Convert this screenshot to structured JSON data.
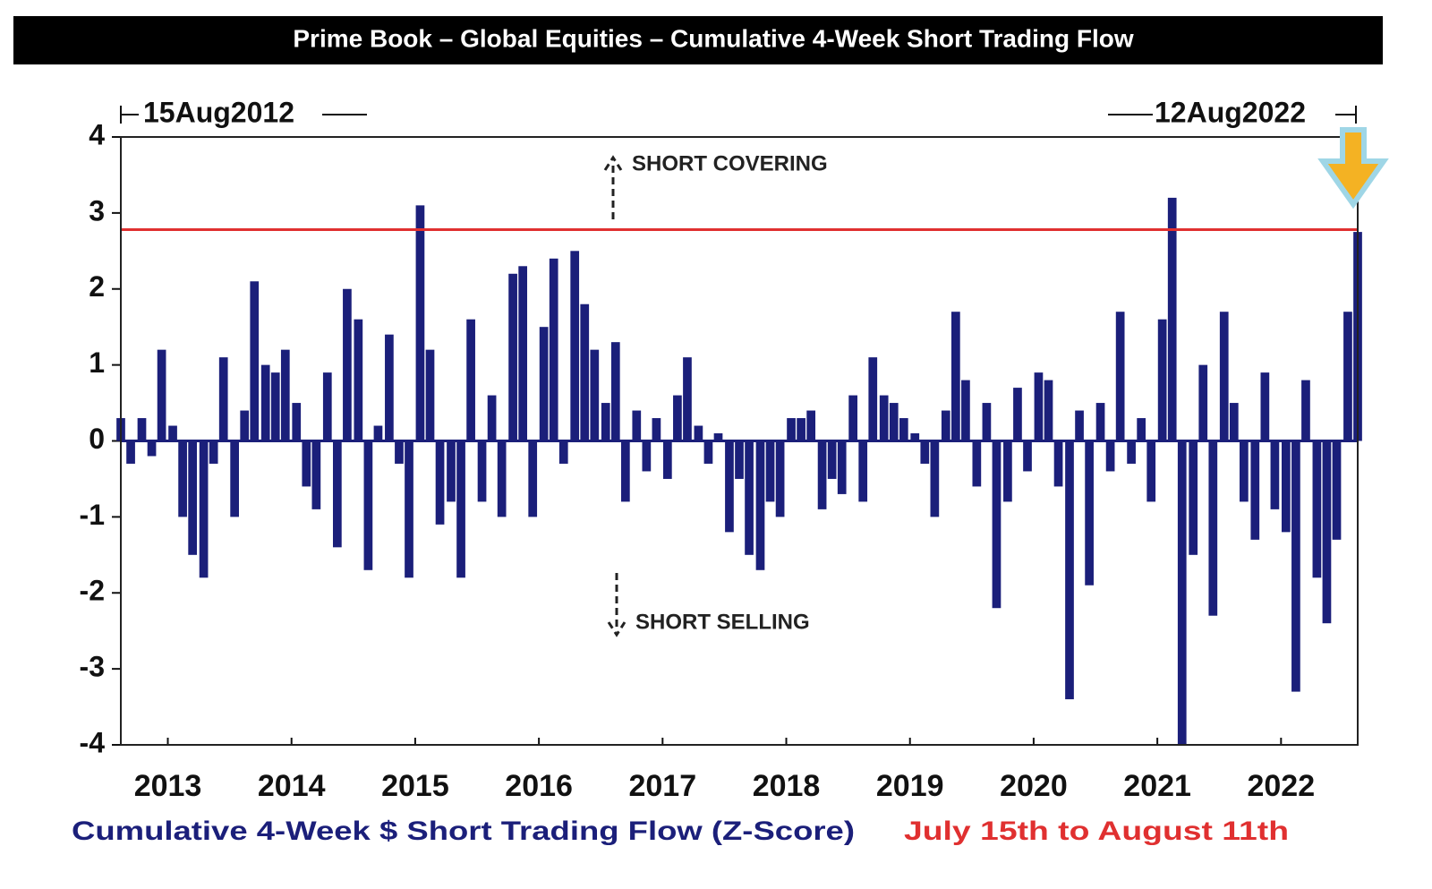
{
  "chart_data": {
    "type": "bar",
    "title": "Prime Book – Global Equities – Cumulative 4-Week Short Trading Flow",
    "annotations": {
      "start": "15Aug2012",
      "end": "12Aug2022",
      "up": "SHORT COVERING",
      "down": "SHORT SELLING"
    },
    "x": [
      2012.62,
      2012.7,
      2012.79,
      2012.87,
      2012.95,
      2013.04,
      2013.12,
      2013.2,
      2013.29,
      2013.37,
      2013.45,
      2013.54,
      2013.62,
      2013.7,
      2013.79,
      2013.87,
      2013.95,
      2014.04,
      2014.12,
      2014.2,
      2014.29,
      2014.37,
      2014.45,
      2014.54,
      2014.62,
      2014.7,
      2014.79,
      2014.87,
      2014.95,
      2015.04,
      2015.12,
      2015.2,
      2015.29,
      2015.37,
      2015.45,
      2015.54,
      2015.62,
      2015.7,
      2015.79,
      2015.87,
      2015.95,
      2016.04,
      2016.12,
      2016.2,
      2016.29,
      2016.37,
      2016.45,
      2016.54,
      2016.62,
      2016.7,
      2016.79,
      2016.87,
      2016.95,
      2017.04,
      2017.12,
      2017.2,
      2017.29,
      2017.37,
      2017.45,
      2017.54,
      2017.62,
      2017.7,
      2017.79,
      2017.87,
      2017.95,
      2018.04,
      2018.12,
      2018.2,
      2018.29,
      2018.37,
      2018.45,
      2018.54,
      2018.62,
      2018.7,
      2018.79,
      2018.87,
      2018.95,
      2019.04,
      2019.12,
      2019.2,
      2019.29,
      2019.37,
      2019.45,
      2019.54,
      2019.62,
      2019.7,
      2019.79,
      2019.87,
      2019.95,
      2020.04,
      2020.12,
      2020.2,
      2020.29,
      2020.37,
      2020.45,
      2020.54,
      2020.62,
      2020.7,
      2020.79,
      2020.87,
      2020.95,
      2021.04,
      2021.12,
      2021.2,
      2021.29,
      2021.37,
      2021.45,
      2021.54,
      2021.62,
      2021.7,
      2021.79,
      2021.87,
      2021.95,
      2022.04,
      2022.12,
      2022.2,
      2022.29,
      2022.37,
      2022.45,
      2022.54,
      2022.62
    ],
    "series": [
      {
        "name": "Cumulative 4-Week $ Short Trading Flow (Z-Score)",
        "color": "#1b1f7a",
        "values": [
          0.3,
          -0.3,
          0.3,
          -0.2,
          1.2,
          0.2,
          -1.0,
          -1.5,
          -1.8,
          -0.3,
          1.1,
          -1.0,
          0.4,
          2.1,
          1.0,
          0.9,
          1.2,
          0.5,
          -0.6,
          -0.9,
          0.9,
          -1.4,
          2.0,
          1.6,
          -1.7,
          0.2,
          1.4,
          -0.3,
          -1.8,
          3.1,
          1.2,
          -1.1,
          -0.8,
          -1.8,
          1.6,
          -0.8,
          0.6,
          -1.0,
          2.2,
          2.3,
          -1.0,
          1.5,
          2.4,
          -0.3,
          2.5,
          1.8,
          1.2,
          0.5,
          1.3,
          -0.8,
          0.4,
          -0.4,
          0.3,
          -0.5,
          0.6,
          1.1,
          0.2,
          -0.3,
          0.1,
          -1.2,
          -0.5,
          -1.5,
          -1.7,
          -0.8,
          -1.0,
          0.3,
          0.3,
          0.4,
          -0.9,
          -0.5,
          -0.7,
          0.6,
          -0.8,
          1.1,
          0.6,
          0.5,
          0.3,
          0.1,
          -0.3,
          -1.0,
          0.4,
          1.7,
          0.8,
          -0.6,
          0.5,
          -2.2,
          -0.8,
          0.7,
          -0.4,
          0.9,
          0.8,
          -0.6,
          -3.4,
          0.4,
          -1.9,
          0.5,
          -0.4,
          1.7,
          -0.3,
          0.3,
          -0.8,
          1.6,
          3.2,
          -4.0,
          -1.5,
          1.0,
          -2.3,
          1.7,
          0.5,
          -0.8,
          -1.3,
          0.9,
          -0.9,
          -1.2,
          -3.3,
          0.8,
          -1.8,
          -2.4,
          -1.3,
          1.7,
          2.75
        ]
      }
    ],
    "reference_line": {
      "value": 2.78,
      "label": "July 15th to August 11th",
      "color": "#e03030"
    },
    "xlim": [
      2012.62,
      2022.62
    ],
    "xticks": [
      2013,
      2014,
      2015,
      2016,
      2017,
      2018,
      2019,
      2020,
      2021,
      2022
    ],
    "ylim": [
      -4,
      4
    ],
    "yticks": [
      4,
      3,
      2,
      1,
      0,
      -1,
      -2,
      -3,
      -4
    ]
  }
}
